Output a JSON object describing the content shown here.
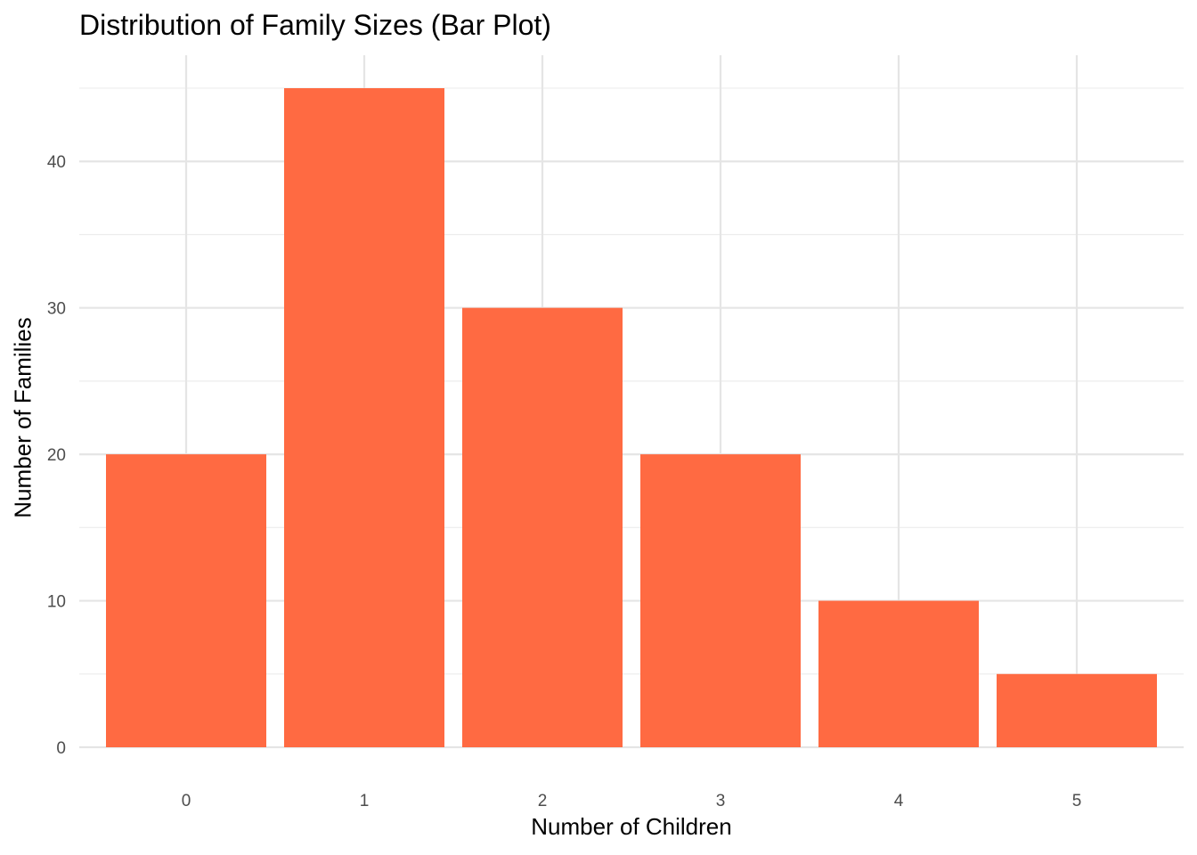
{
  "chart_data": {
    "type": "bar",
    "title": "Distribution of Family Sizes (Bar Plot)",
    "xlabel": "Number of Children",
    "ylabel": "Number of Families",
    "categories": [
      "0",
      "1",
      "2",
      "3",
      "4",
      "5"
    ],
    "values": [
      20,
      45,
      30,
      20,
      10,
      5
    ],
    "ylim": [
      0,
      47.25
    ],
    "yticks": [
      0,
      10,
      20,
      30,
      40
    ],
    "grid": true,
    "bar_color": "#FF6A42"
  }
}
